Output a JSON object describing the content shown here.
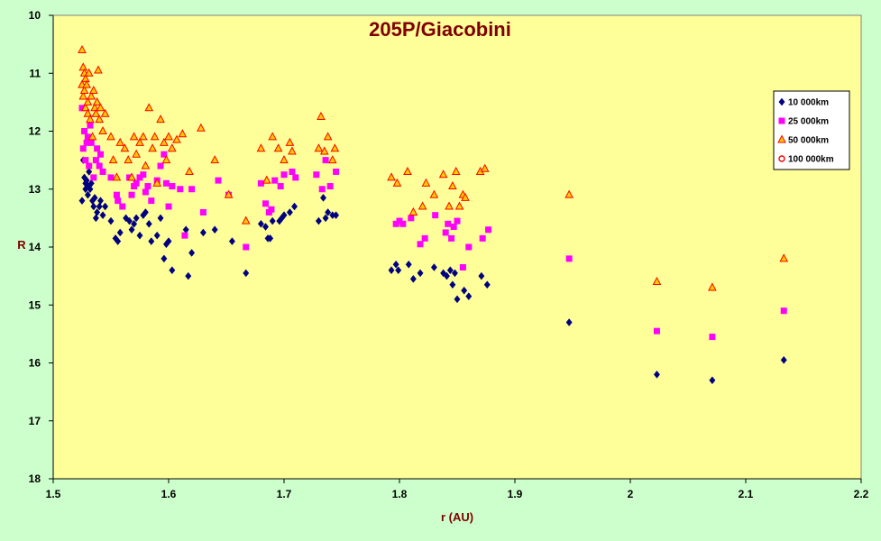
{
  "chart_data": {
    "type": "scatter",
    "title": "205P/Giacobini",
    "xlabel": "r (AU)",
    "ylabel": "R",
    "xlim": [
      1.5,
      2.2
    ],
    "ylim": [
      10,
      18
    ],
    "y_inverted": true,
    "grid": false,
    "legend_position": "top-right",
    "x_ticks": [
      "1.5",
      "1.6",
      "1.7",
      "1.8",
      "1.9",
      "2",
      "2.1",
      "2.2"
    ],
    "y_ticks": [
      "10",
      "11",
      "12",
      "13",
      "14",
      "15",
      "16",
      "17",
      "18"
    ],
    "colors": {
      "plot_background": "#ffff99",
      "page_background": "#ccffcc",
      "title": "#800000"
    },
    "series": [
      {
        "name": "10 000km",
        "marker": "diamond",
        "color": "#000080",
        "x": [
          1.525,
          1.526,
          1.527,
          1.528,
          1.528,
          1.529,
          1.53,
          1.53,
          1.531,
          1.532,
          1.533,
          1.534,
          1.535,
          1.536,
          1.537,
          1.538,
          1.54,
          1.541,
          1.543,
          1.545,
          1.55,
          1.554,
          1.556,
          1.558,
          1.563,
          1.566,
          1.568,
          1.57,
          1.572,
          1.575,
          1.578,
          1.58,
          1.583,
          1.585,
          1.59,
          1.593,
          1.596,
          1.598,
          1.6,
          1.603,
          1.615,
          1.617,
          1.62,
          1.63,
          1.64,
          1.655,
          1.667,
          1.68,
          1.684,
          1.686,
          1.688,
          1.69,
          1.696,
          1.698,
          1.7,
          1.705,
          1.709,
          1.73,
          1.734,
          1.736,
          1.738,
          1.742,
          1.745,
          1.793,
          1.797,
          1.799,
          1.808,
          1.812,
          1.818,
          1.83,
          1.838,
          1.841,
          1.844,
          1.846,
          1.848,
          1.85,
          1.856,
          1.86,
          1.871,
          1.876,
          1.947,
          2.023,
          2.071,
          2.133
        ],
        "y": [
          13.2,
          12.5,
          12.8,
          13.0,
          12.9,
          12.85,
          13.1,
          12.95,
          12.7,
          13.0,
          12.9,
          13.2,
          13.3,
          13.15,
          13.5,
          13.4,
          13.3,
          13.2,
          13.45,
          13.3,
          13.55,
          13.85,
          13.9,
          13.75,
          13.5,
          13.55,
          13.7,
          13.6,
          13.5,
          13.8,
          13.45,
          13.4,
          13.6,
          13.9,
          13.8,
          13.5,
          14.2,
          13.95,
          13.9,
          14.4,
          13.7,
          14.5,
          14.1,
          13.75,
          13.7,
          13.9,
          14.45,
          13.6,
          13.65,
          13.85,
          13.85,
          13.55,
          13.55,
          13.5,
          13.45,
          13.4,
          13.3,
          13.55,
          13.15,
          13.5,
          13.4,
          13.45,
          13.45,
          14.4,
          14.3,
          14.4,
          14.3,
          14.55,
          14.45,
          14.35,
          14.45,
          14.5,
          14.4,
          14.65,
          14.45,
          14.9,
          14.75,
          14.85,
          14.5,
          14.65,
          15.3,
          16.2,
          16.3,
          15.95
        ]
      },
      {
        "name": "25 000km",
        "marker": "square",
        "color": "#ff00ff",
        "x": [
          1.525,
          1.526,
          1.527,
          1.528,
          1.529,
          1.53,
          1.531,
          1.532,
          1.533,
          1.535,
          1.537,
          1.538,
          1.54,
          1.541,
          1.543,
          1.55,
          1.555,
          1.556,
          1.56,
          1.566,
          1.568,
          1.57,
          1.572,
          1.575,
          1.578,
          1.58,
          1.582,
          1.585,
          1.59,
          1.593,
          1.596,
          1.598,
          1.6,
          1.603,
          1.61,
          1.614,
          1.62,
          1.63,
          1.643,
          1.652,
          1.667,
          1.68,
          1.684,
          1.687,
          1.689,
          1.692,
          1.697,
          1.7,
          1.707,
          1.71,
          1.728,
          1.733,
          1.736,
          1.74,
          1.745,
          1.797,
          1.8,
          1.803,
          1.81,
          1.818,
          1.822,
          1.831,
          1.84,
          1.842,
          1.845,
          1.847,
          1.85,
          1.855,
          1.86,
          1.872,
          1.877,
          1.947,
          2.023,
          2.071,
          2.133
        ],
        "y": [
          11.6,
          12.3,
          12.0,
          12.5,
          12.2,
          12.1,
          12.6,
          11.9,
          12.2,
          12.8,
          12.5,
          12.3,
          12.6,
          12.4,
          12.7,
          12.8,
          13.1,
          13.2,
          13.3,
          12.8,
          13.1,
          12.95,
          12.9,
          12.8,
          12.75,
          13.05,
          12.95,
          13.2,
          12.85,
          12.6,
          12.4,
          12.9,
          13.3,
          12.95,
          13.0,
          13.8,
          13.0,
          13.4,
          12.85,
          13.1,
          14.0,
          12.9,
          13.25,
          13.4,
          13.35,
          12.85,
          12.95,
          12.75,
          12.7,
          12.8,
          12.75,
          13.0,
          12.5,
          12.95,
          12.7,
          13.6,
          13.55,
          13.6,
          13.5,
          13.95,
          13.85,
          13.45,
          13.75,
          13.6,
          13.85,
          13.65,
          13.55,
          14.35,
          14.0,
          13.85,
          13.7,
          14.2,
          15.45,
          15.55,
          15.1
        ]
      },
      {
        "name": "50 000km",
        "marker": "triangle",
        "color": "#ff0000",
        "fill": "#ffcc00",
        "x": [
          1.525,
          1.525,
          1.526,
          1.526,
          1.527,
          1.527,
          1.528,
          1.528,
          1.529,
          1.53,
          1.53,
          1.531,
          1.532,
          1.533,
          1.534,
          1.535,
          1.536,
          1.537,
          1.538,
          1.539,
          1.54,
          1.541,
          1.543,
          1.545,
          1.55,
          1.552,
          1.555,
          1.558,
          1.562,
          1.565,
          1.568,
          1.57,
          1.572,
          1.575,
          1.578,
          1.58,
          1.583,
          1.586,
          1.588,
          1.59,
          1.593,
          1.596,
          1.598,
          1.6,
          1.603,
          1.607,
          1.612,
          1.618,
          1.628,
          1.64,
          1.652,
          1.667,
          1.68,
          1.685,
          1.69,
          1.695,
          1.7,
          1.705,
          1.707,
          1.73,
          1.732,
          1.735,
          1.738,
          1.742,
          1.744,
          1.793,
          1.798,
          1.807,
          1.812,
          1.82,
          1.823,
          1.83,
          1.838,
          1.843,
          1.846,
          1.849,
          1.852,
          1.855,
          1.857,
          1.87,
          1.874,
          1.947,
          2.023,
          2.071,
          2.133
        ],
        "y": [
          10.6,
          11.2,
          10.9,
          11.4,
          11.0,
          11.3,
          11.1,
          11.6,
          11.2,
          11.5,
          11.7,
          11.0,
          11.8,
          11.4,
          12.1,
          11.3,
          11.6,
          11.7,
          11.5,
          10.95,
          11.8,
          11.6,
          12.0,
          11.7,
          12.1,
          12.5,
          12.8,
          12.2,
          12.3,
          12.5,
          12.8,
          12.1,
          12.4,
          12.2,
          12.1,
          12.6,
          11.6,
          12.3,
          12.1,
          12.9,
          11.8,
          12.2,
          12.5,
          12.1,
          12.3,
          12.15,
          12.05,
          12.7,
          11.95,
          12.5,
          13.1,
          13.55,
          12.3,
          12.85,
          12.1,
          12.3,
          12.5,
          12.2,
          12.35,
          12.3,
          11.75,
          12.35,
          12.1,
          12.5,
          12.3,
          12.8,
          12.9,
          12.7,
          13.4,
          13.3,
          12.9,
          13.1,
          12.75,
          13.3,
          12.95,
          12.7,
          13.3,
          13.1,
          13.15,
          12.7,
          12.65,
          13.1,
          14.6,
          14.7,
          14.2
        ]
      },
      {
        "name": "100 000km",
        "marker": "circle",
        "color": "#ff0000",
        "x": [],
        "y": []
      }
    ]
  }
}
